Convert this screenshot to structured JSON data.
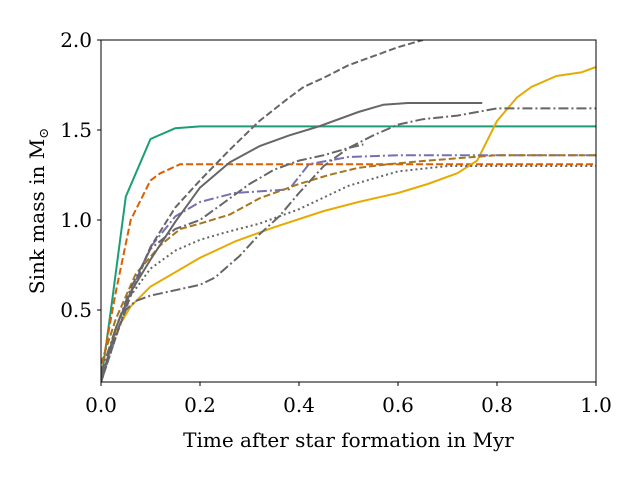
{
  "chart_data": {
    "type": "line",
    "title": "",
    "xlabel": "Time after star formation in Myr",
    "ylabel_text": "Sink mass in M",
    "ylabel_subscript": "⊙",
    "xlim": [
      0.0,
      1.0
    ],
    "ylim": [
      0.1,
      2.0
    ],
    "xticks": [
      0.0,
      0.2,
      0.4,
      0.6,
      0.8,
      1.0
    ],
    "xtick_labels": [
      "0.0",
      "0.2",
      "0.4",
      "0.6",
      "0.8",
      "1.0"
    ],
    "yticks": [
      0.5,
      1.0,
      1.5,
      2.0
    ],
    "ytick_labels": [
      "0.5",
      "1.0",
      "1.5",
      "2.0"
    ],
    "grid": false,
    "legend": false,
    "series": [
      {
        "name": "green solid",
        "color": "#1b9e77",
        "style": "solid",
        "x": [
          0.0,
          0.02,
          0.05,
          0.1,
          0.15,
          0.2,
          0.3,
          0.5,
          0.7,
          1.0
        ],
        "y": [
          0.1,
          0.5,
          1.13,
          1.45,
          1.51,
          1.52,
          1.52,
          1.52,
          1.52,
          1.52
        ]
      },
      {
        "name": "orange dashed",
        "color": "#d95f02",
        "style": "dashed",
        "x": [
          0.0,
          0.03,
          0.06,
          0.1,
          0.12,
          0.16,
          0.2,
          0.4,
          0.6,
          1.0
        ],
        "y": [
          0.15,
          0.6,
          1.0,
          1.22,
          1.26,
          1.31,
          1.31,
          1.31,
          1.31,
          1.31
        ]
      },
      {
        "name": "yellow solid",
        "color": "#e6ab02",
        "style": "solid",
        "x": [
          0.0,
          0.03,
          0.06,
          0.1,
          0.15,
          0.2,
          0.27,
          0.35,
          0.45,
          0.52,
          0.6,
          0.66,
          0.72,
          0.76,
          0.8,
          0.84,
          0.87,
          0.92,
          0.97,
          1.0
        ],
        "y": [
          0.1,
          0.38,
          0.52,
          0.63,
          0.71,
          0.79,
          0.88,
          0.96,
          1.05,
          1.1,
          1.15,
          1.2,
          1.26,
          1.33,
          1.55,
          1.68,
          1.74,
          1.8,
          1.82,
          1.85
        ]
      },
      {
        "name": "purple dash-dot",
        "color": "#7570b3",
        "style": "dashdot",
        "x": [
          0.0,
          0.03,
          0.06,
          0.1,
          0.15,
          0.2,
          0.27,
          0.38,
          0.42,
          0.5,
          0.6,
          0.7,
          0.8,
          1.0
        ],
        "y": [
          0.1,
          0.35,
          0.6,
          0.85,
          1.02,
          1.1,
          1.15,
          1.17,
          1.31,
          1.35,
          1.36,
          1.36,
          1.36,
          1.36
        ]
      },
      {
        "name": "brown dashed",
        "color": "#a6761d",
        "style": "dashed",
        "x": [
          0.0,
          0.03,
          0.07,
          0.12,
          0.16,
          0.2,
          0.26,
          0.32,
          0.4,
          0.46,
          0.52,
          0.58,
          0.66,
          0.8,
          1.0
        ],
        "y": [
          0.2,
          0.45,
          0.7,
          0.86,
          0.95,
          0.98,
          1.03,
          1.12,
          1.2,
          1.25,
          1.29,
          1.31,
          1.33,
          1.36,
          1.36
        ]
      },
      {
        "name": "grey solid",
        "color": "#666666",
        "style": "solid",
        "x": [
          0.0,
          0.03,
          0.06,
          0.1,
          0.15,
          0.2,
          0.26,
          0.32,
          0.38,
          0.44,
          0.52,
          0.57,
          0.62,
          0.7,
          0.77
        ],
        "y": [
          0.1,
          0.4,
          0.6,
          0.78,
          0.99,
          1.18,
          1.32,
          1.41,
          1.47,
          1.52,
          1.6,
          1.64,
          1.65,
          1.65,
          1.65
        ]
      },
      {
        "name": "grey dashed",
        "color": "#666666",
        "style": "dashed",
        "x": [
          0.0,
          0.03,
          0.06,
          0.1,
          0.15,
          0.2,
          0.26,
          0.32,
          0.38,
          0.41,
          0.45,
          0.5,
          0.55,
          0.6,
          0.65
        ],
        "y": [
          0.1,
          0.35,
          0.58,
          0.85,
          1.07,
          1.22,
          1.39,
          1.55,
          1.68,
          1.74,
          1.79,
          1.86,
          1.91,
          1.96,
          2.0
        ]
      },
      {
        "name": "grey dash-dot long",
        "color": "#666666",
        "style": "dashdot",
        "x": [
          0.0,
          0.02,
          0.05,
          0.07,
          0.1,
          0.15,
          0.2,
          0.23,
          0.28,
          0.32,
          0.36,
          0.4,
          0.45,
          0.5,
          0.55,
          0.6,
          0.65,
          0.72,
          0.8,
          0.9,
          1.0
        ],
        "y": [
          0.1,
          0.3,
          0.5,
          0.55,
          0.58,
          0.61,
          0.64,
          0.68,
          0.8,
          0.92,
          1.02,
          1.15,
          1.3,
          1.4,
          1.47,
          1.53,
          1.56,
          1.58,
          1.62,
          1.62,
          1.62
        ]
      },
      {
        "name": "grey dash-dot short",
        "color": "#666666",
        "style": "dashdot",
        "x": [
          0.0,
          0.03,
          0.06,
          0.1,
          0.15,
          0.2,
          0.25,
          0.3,
          0.35,
          0.4,
          0.45,
          0.5,
          0.53
        ],
        "y": [
          0.15,
          0.4,
          0.62,
          0.84,
          0.95,
          1.0,
          1.1,
          1.2,
          1.28,
          1.33,
          1.36,
          1.4,
          1.42
        ]
      },
      {
        "name": "grey dotted",
        "color": "#666666",
        "style": "dotted",
        "x": [
          0.0,
          0.03,
          0.06,
          0.1,
          0.15,
          0.2,
          0.25,
          0.32,
          0.4,
          0.5,
          0.6,
          0.7,
          0.8,
          1.0
        ],
        "y": [
          0.1,
          0.35,
          0.58,
          0.73,
          0.83,
          0.89,
          0.93,
          0.98,
          1.06,
          1.19,
          1.27,
          1.3,
          1.3,
          1.3
        ]
      }
    ]
  }
}
